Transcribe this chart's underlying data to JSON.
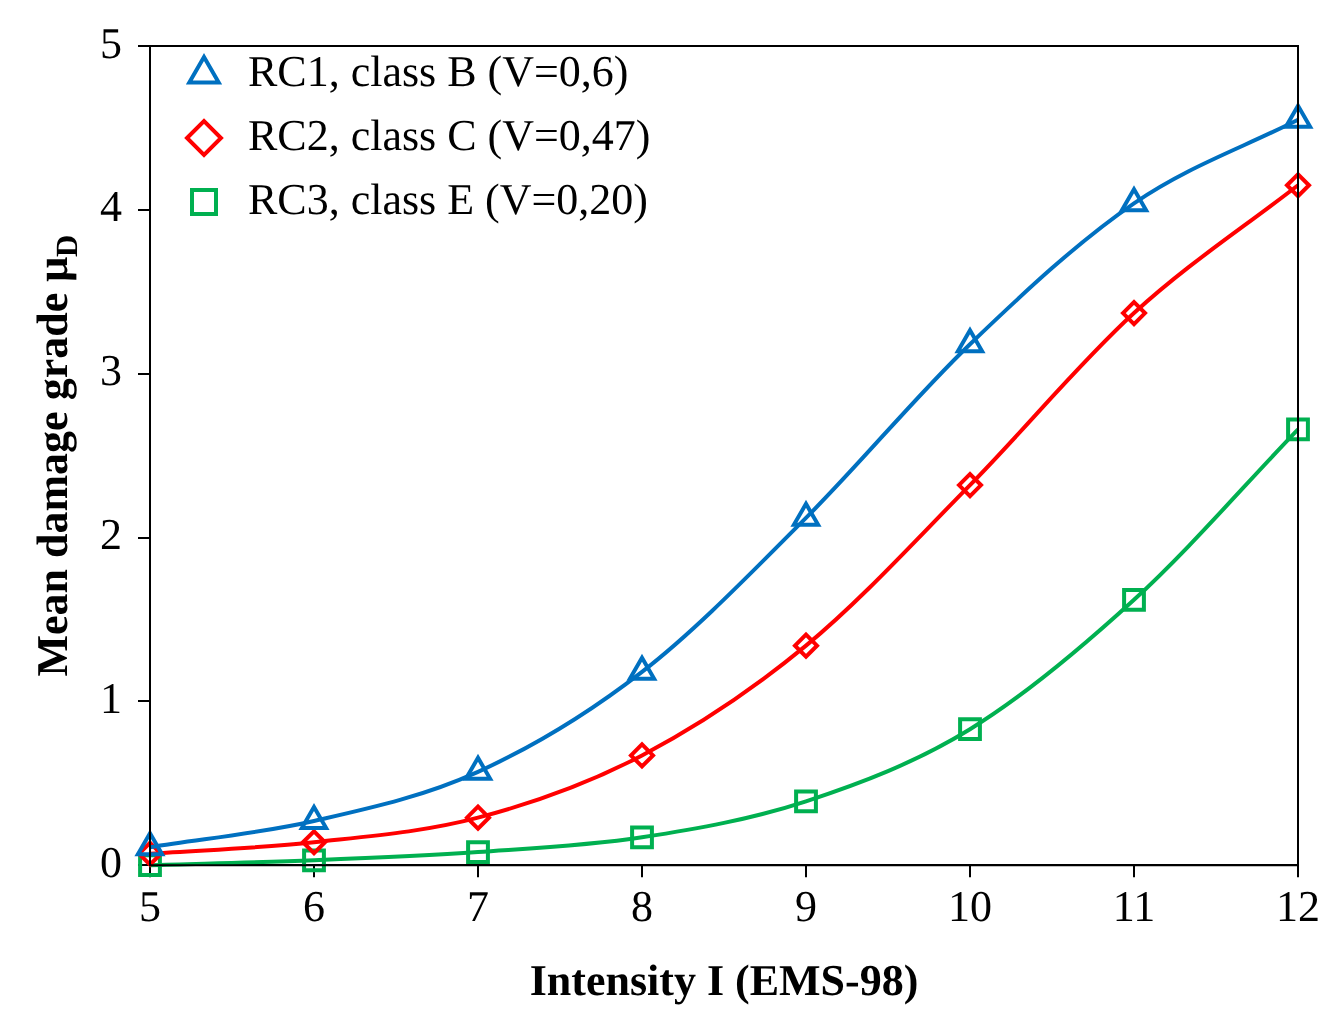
{
  "chart_data": {
    "type": "line",
    "xlabel": "Intensity I (EMS-98)",
    "ylabel": "Mean damage grade μ$_{D}$",
    "x": [
      5,
      6,
      7,
      8,
      9,
      10,
      11,
      12
    ],
    "series": [
      {
        "name": "RC1, class B (V=0,6)",
        "color": "#0070c0",
        "marker": "triangle",
        "values": [
          0.11,
          0.27,
          0.57,
          1.18,
          2.12,
          3.18,
          4.04,
          4.55
        ]
      },
      {
        "name": "RC2, class C (V=0,47)",
        "color": "#ff0000",
        "marker": "diamond",
        "values": [
          0.07,
          0.14,
          0.29,
          0.67,
          1.34,
          2.32,
          3.37,
          4.15
        ]
      },
      {
        "name": "RC3, class E (V=0,20)",
        "color": "#00b050",
        "marker": "square",
        "values": [
          0.0,
          0.03,
          0.08,
          0.17,
          0.39,
          0.83,
          1.62,
          2.66
        ]
      }
    ],
    "xlim": [
      5,
      12
    ],
    "xticks": [
      5,
      6,
      7,
      8,
      9,
      10,
      11,
      12
    ],
    "ylim": [
      0,
      5
    ],
    "yticks": [
      0,
      1,
      2,
      3,
      4,
      5
    ],
    "grid": false,
    "legend": "top left",
    "line_style": "solid"
  }
}
